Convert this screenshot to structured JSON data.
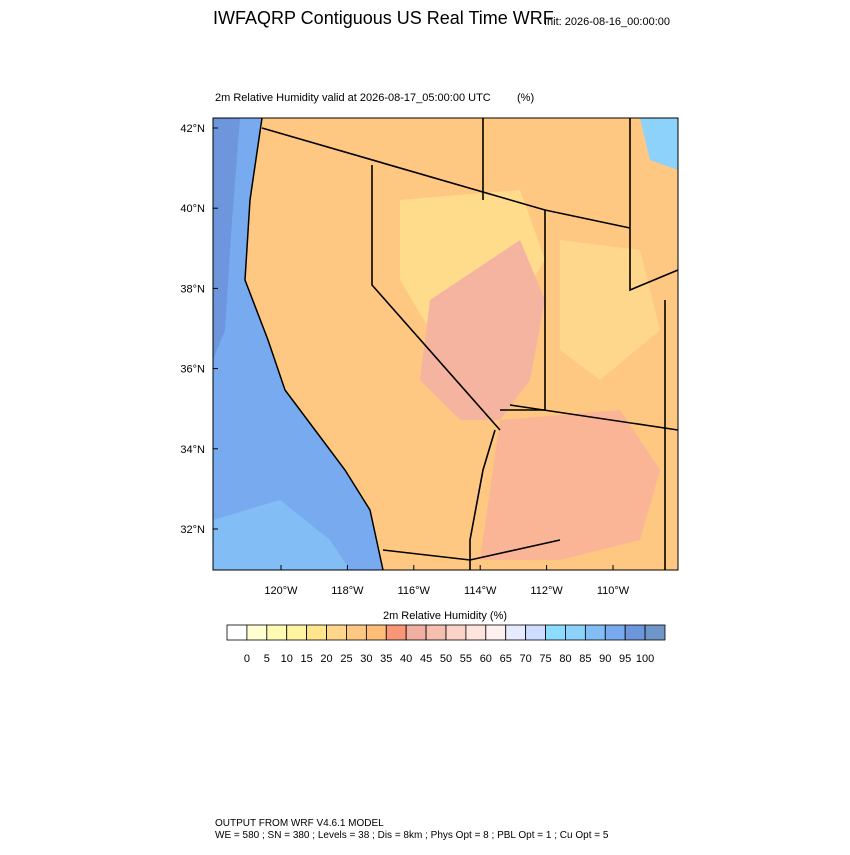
{
  "header": {
    "title": "IWFAQRP Contiguous US Real Time WRF",
    "init": "Init: 2026-08-16_00:00:00"
  },
  "map": {
    "subtitle": "2m Relative Humidity valid at 2026-08-17_05:00:00 UTC",
    "units": "(%)",
    "lat_labels": [
      "42°N",
      "40°N",
      "38°N",
      "36°N",
      "34°N",
      "32°N"
    ],
    "lon_labels": [
      "120°W",
      "118°W",
      "116°W",
      "114°W",
      "112°W",
      "110°W"
    ]
  },
  "colorbar": {
    "title": "2m Relative Humidity  (%)",
    "levels": [
      0,
      5,
      10,
      15,
      20,
      25,
      30,
      35,
      40,
      45,
      50,
      55,
      60,
      65,
      70,
      75,
      80,
      85,
      90,
      95,
      100
    ],
    "colors": [
      "#ffffff",
      "#ffffd2",
      "#fffab4",
      "#fff5a0",
      "#ffe68c",
      "#ffd78c",
      "#ffc882",
      "#ffbe78",
      "#fa9678",
      "#f0afa0",
      "#f5bfb0",
      "#fad2c8",
      "#fde4dc",
      "#fff0f0",
      "#e6ebff",
      "#cddcff",
      "#8cdcff",
      "#8cd2fa",
      "#82bef5",
      "#78aaf0",
      "#6e96dc",
      "#6e96c8"
    ]
  },
  "footer": {
    "line1": "OUTPUT FROM WRF V4.6.1 MODEL",
    "line2": "WE = 580 ; SN = 380 ; Levels = 38 ; Dis = 8km ; Phys Opt = 8 ; PBL Opt = 1 ; Cu Opt = 5"
  }
}
